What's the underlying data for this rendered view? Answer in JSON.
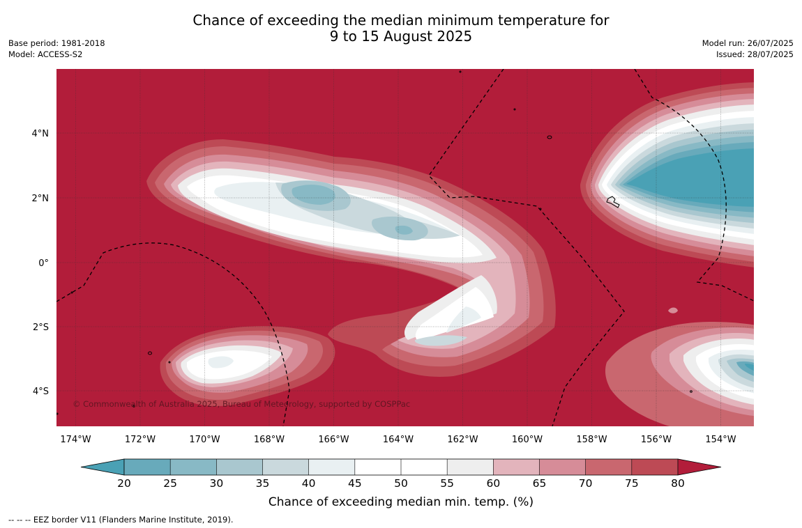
{
  "header": {
    "title_line1": "Chance of exceeding the median minimum temperature for",
    "title_line2": "9 to 15 August 2025",
    "base_period": "Base period: 1981-2018",
    "model": "Model: ACCESS-S2",
    "model_run": "Model run: 26/07/2025",
    "issued": "Issued: 28/07/2025"
  },
  "map": {
    "copyright": "© Commonwealth of Australia 2025, Bureau of Meteorology, supported by COSPPac",
    "lat_labels": [
      "4°N",
      "2°N",
      "0°",
      "2°S",
      "4°S"
    ],
    "lon_labels": [
      "174°W",
      "172°W",
      "170°W",
      "168°W",
      "166°W",
      "164°W",
      "162°W",
      "160°W",
      "158°W",
      "156°W",
      "154°W"
    ],
    "colors": {
      "background_high": "#b21d3a",
      "teal_low": "#4aa1b5"
    }
  },
  "colorbar": {
    "ticks": [
      "20",
      "25",
      "30",
      "35",
      "40",
      "45",
      "50",
      "55",
      "60",
      "65",
      "70",
      "75",
      "80"
    ],
    "colors": [
      "#68aabb",
      "#88b9c5",
      "#a9c7cf",
      "#cad9dd",
      "#e9f0f2",
      "#ffffff",
      "#ffffff",
      "#eeeeee",
      "#e3b4bc",
      "#d68c98",
      "#c9676f",
      "#bd4a55"
    ],
    "under_color": "#4aa1b5",
    "over_color": "#b21d3a",
    "label": "Chance of exceeding median min. temp. (%)"
  },
  "footer": {
    "eez_legend": "--  --  -- EEZ border V11 (Flanders Marine Institute, 2019)."
  }
}
